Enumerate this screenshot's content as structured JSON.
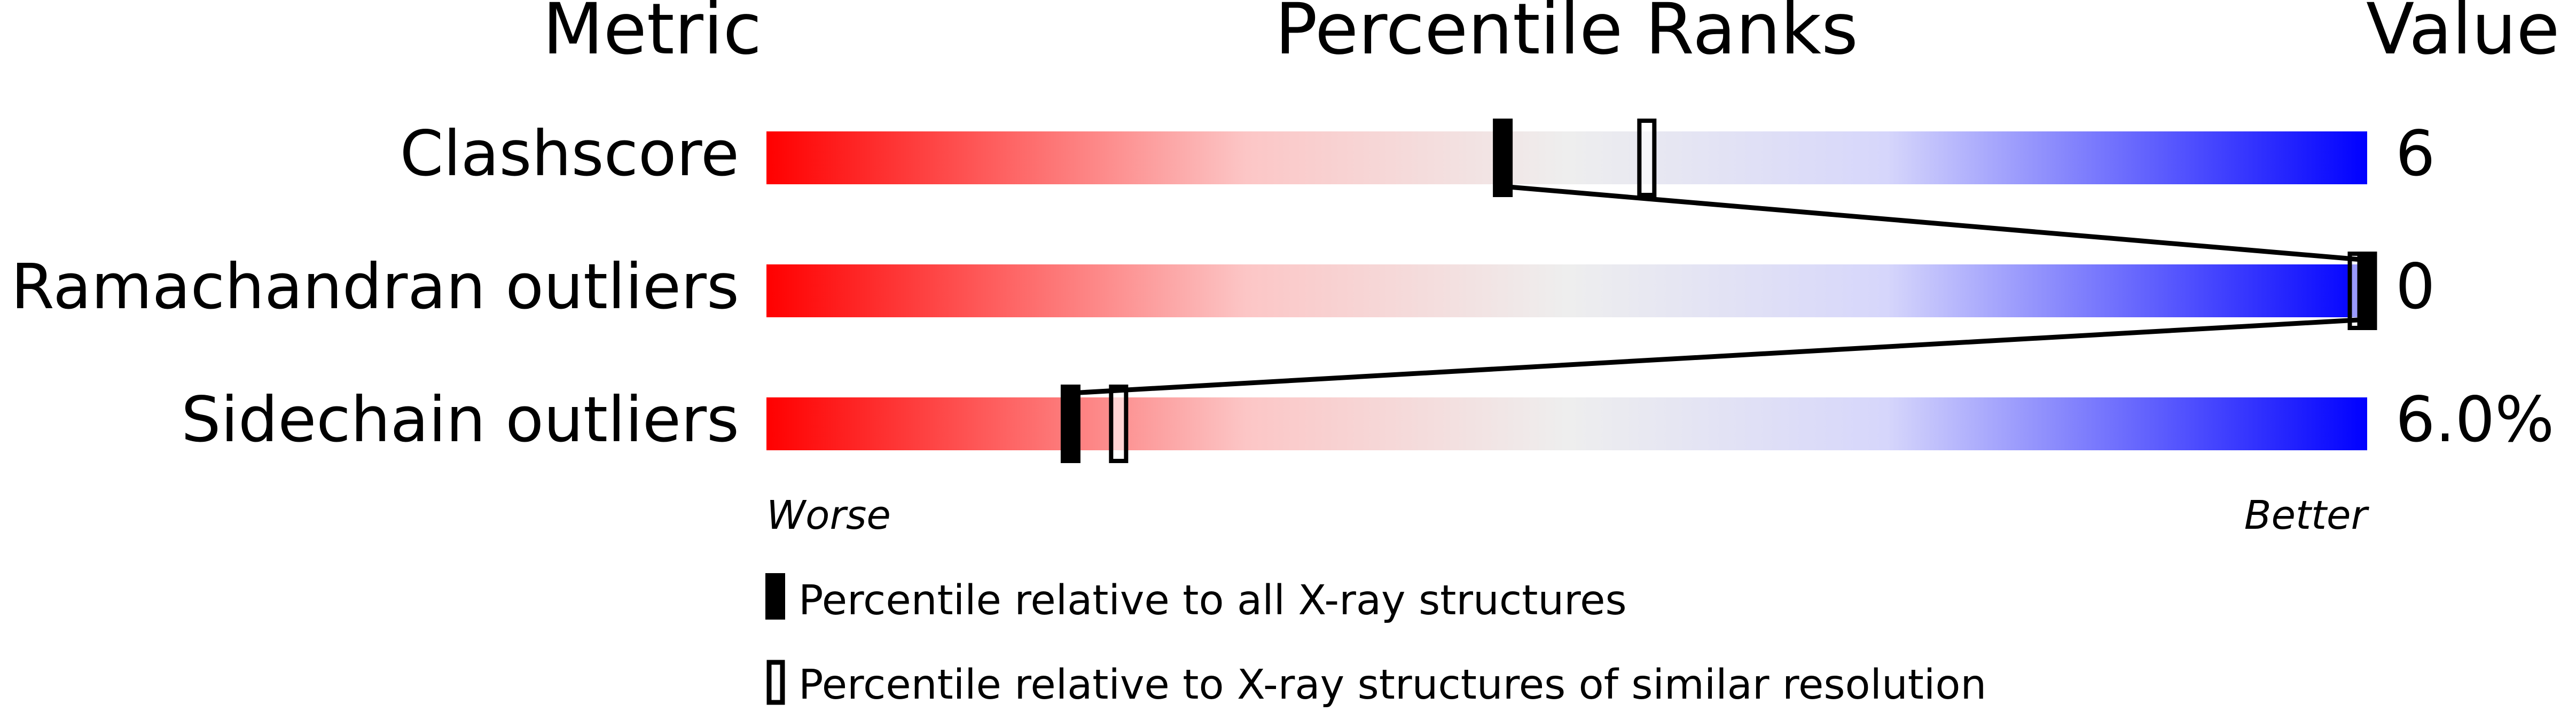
{
  "chart_data": {
    "type": "bar",
    "title": "",
    "headers": {
      "metric": "Metric",
      "ranks": "Percentile Ranks",
      "value": "Value"
    },
    "xlim": [
      0,
      100
    ],
    "scale_labels": {
      "low": "Worse",
      "high": "Better"
    },
    "gradient_colors": {
      "worse": "#ff0000",
      "middle": "#eeeeee",
      "better": "#0000ff"
    },
    "rows": [
      {
        "metric": "Clashscore",
        "value": "6",
        "percentile_all": 46,
        "percentile_similar": 55
      },
      {
        "metric": "Ramachandran outliers",
        "value": "0",
        "percentile_all": 100,
        "percentile_similar": 100
      },
      {
        "metric": "Sidechain outliers",
        "value": "6.0%",
        "percentile_all": 19,
        "percentile_similar": 22
      }
    ],
    "legend": [
      {
        "marker": "filled",
        "label": "Percentile relative to all X-ray structures"
      },
      {
        "marker": "open",
        "label": "Percentile relative to X-ray structures of similar resolution"
      }
    ]
  }
}
